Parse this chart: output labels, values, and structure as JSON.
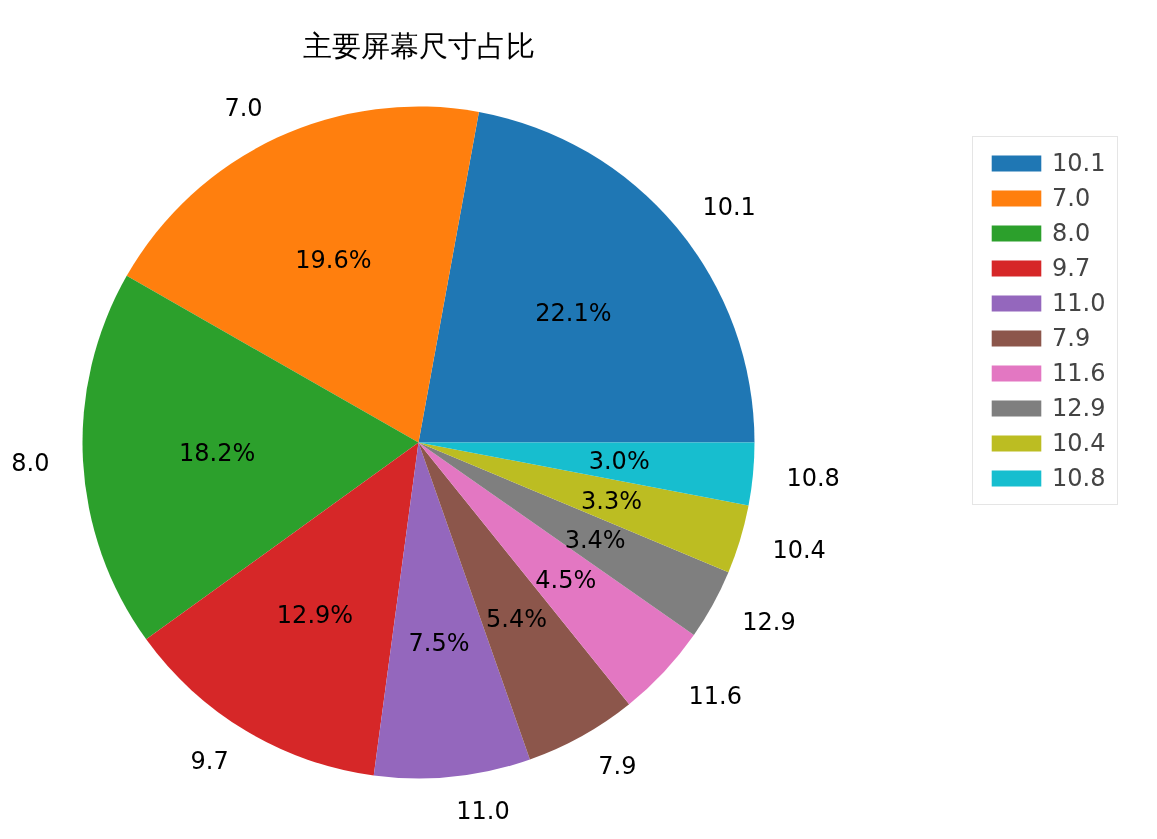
{
  "chart_data": {
    "type": "pie",
    "title": "主要屏幕尺寸占比",
    "categories": [
      "10.1",
      "7.0",
      "8.0",
      "9.7",
      "11.0",
      "7.9",
      "11.6",
      "12.9",
      "10.4",
      "10.8"
    ],
    "values": [
      22.1,
      19.6,
      18.2,
      12.9,
      7.5,
      5.4,
      4.5,
      3.4,
      3.3,
      3.0
    ],
    "value_labels": [
      "22.1%",
      "19.6%",
      "18.2%",
      "12.9%",
      "7.5%",
      "5.4%",
      "4.5%",
      "3.4%",
      "3.3%",
      "3.0%"
    ],
    "colors": [
      "#1f77b4",
      "#ff7f0e",
      "#2ca02c",
      "#d62728",
      "#9467bd",
      "#8c564b",
      "#e377c2",
      "#7f7f7f",
      "#bcbd22",
      "#17becf"
    ],
    "legend": "right"
  }
}
